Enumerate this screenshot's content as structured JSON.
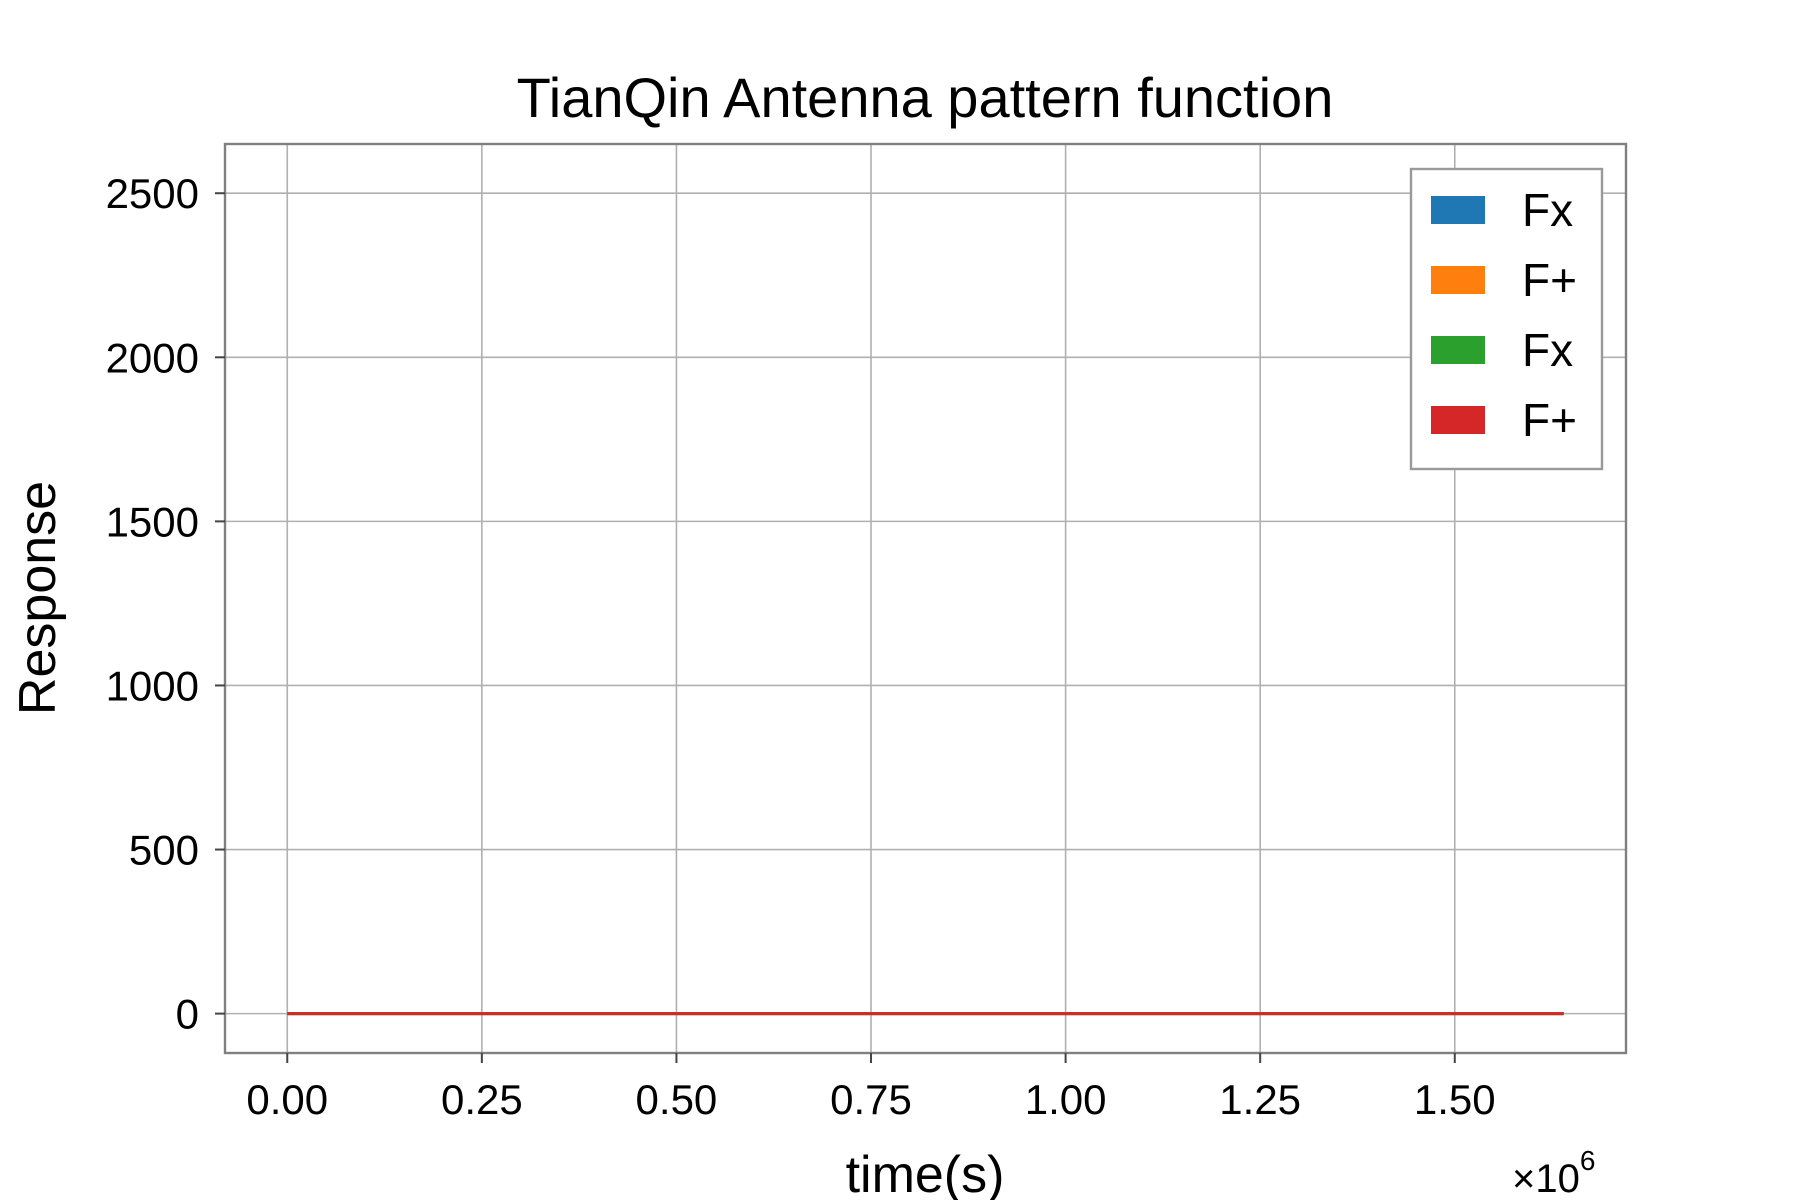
{
  "chart_data": {
    "type": "line",
    "title": "TianQin Antenna pattern function",
    "xlabel": "time(s)",
    "ylabel": "Response",
    "x_offset_text": "×10",
    "x_offset_exponent": "6",
    "xlim": [
      -80000,
      1720000
    ],
    "ylim": [
      -120,
      2650
    ],
    "x_ticks": [
      0,
      250000,
      500000,
      750000,
      1000000,
      1250000,
      1500000
    ],
    "x_tick_labels": [
      "0.00",
      "0.25",
      "0.50",
      "0.75",
      "1.00",
      "1.25",
      "1.50"
    ],
    "y_ticks": [
      0,
      500,
      1000,
      1500,
      2000,
      2500
    ],
    "y_tick_labels": [
      "0",
      "500",
      "1000",
      "1500",
      "2000",
      "2500"
    ],
    "grid": true,
    "legend_position": "top-right",
    "series": [
      {
        "name": "Fx",
        "color": "#1f77b4",
        "x": [
          0,
          1640000
        ],
        "y": [
          0,
          0
        ]
      },
      {
        "name": "F+",
        "color": "#ff7f0e",
        "x": [
          0,
          1640000
        ],
        "y": [
          0,
          0
        ]
      },
      {
        "name": "Fx",
        "color": "#2ca02c",
        "x": [
          0,
          1640000
        ],
        "y": [
          0,
          0
        ]
      },
      {
        "name": "F+",
        "color": "#d62728",
        "x": [
          0,
          1640000
        ],
        "y": [
          0,
          0
        ]
      }
    ]
  }
}
